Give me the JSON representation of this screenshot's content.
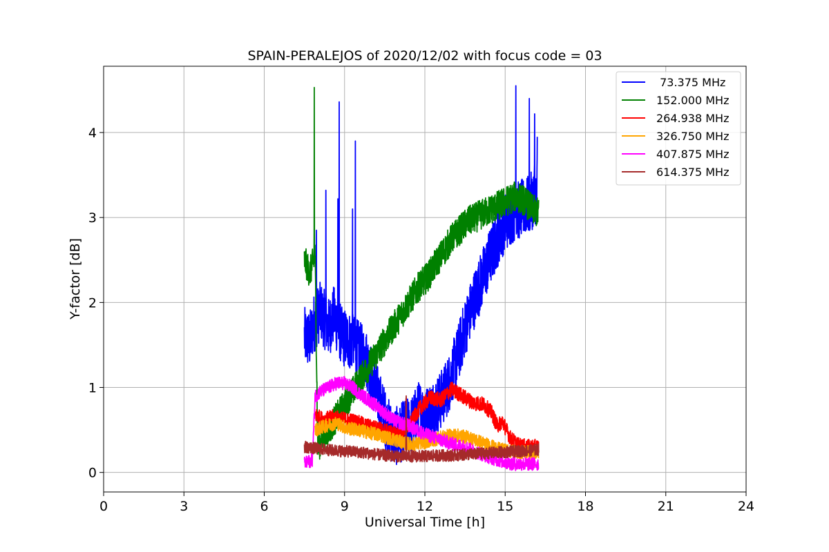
{
  "chart_data": {
    "type": "line",
    "title": "SPAIN-PERALEJOS of 2020/12/02 with focus code = 03",
    "xlabel": "Universal Time [h]",
    "ylabel": "Y-factor [dB]",
    "xlim": [
      0,
      24
    ],
    "ylim": [
      -0.23,
      4.78
    ],
    "xticks": [
      0,
      3,
      6,
      9,
      12,
      15,
      18,
      21,
      24
    ],
    "yticks": [
      0,
      1,
      2,
      3,
      4
    ],
    "grid": true,
    "legend_position": "top-right",
    "series": [
      {
        "name": " 73.375 MHz",
        "color": "#0000ff",
        "x": [
          7.5,
          7.7,
          7.85,
          8.1,
          8.4,
          8.6,
          8.9,
          9.2,
          9.5,
          9.8,
          10.0,
          10.2,
          10.4,
          10.6,
          10.8,
          11.0,
          11.2,
          11.5,
          11.8,
          12.0,
          12.3,
          12.6,
          12.9,
          13.2,
          13.5,
          13.8,
          14.1,
          14.4,
          14.7,
          15.0,
          15.3,
          15.6,
          15.9,
          16.2
        ],
        "y": [
          1.6,
          1.55,
          1.75,
          1.9,
          1.7,
          1.85,
          1.6,
          1.55,
          1.45,
          1.35,
          1.15,
          0.95,
          0.75,
          0.55,
          0.45,
          0.42,
          0.5,
          0.55,
          0.75,
          0.65,
          0.75,
          0.85,
          1.05,
          1.35,
          1.7,
          2.0,
          2.25,
          2.5,
          2.75,
          2.95,
          3.05,
          3.1,
          3.15,
          3.3
        ],
        "spikes": [
          {
            "x": 7.95,
            "y": 2.85
          },
          {
            "x": 8.3,
            "y": 3.32
          },
          {
            "x": 8.75,
            "y": 3.22
          },
          {
            "x": 8.8,
            "y": 4.36
          },
          {
            "x": 9.4,
            "y": 3.9
          },
          {
            "x": 9.3,
            "y": 3.1
          },
          {
            "x": 15.4,
            "y": 4.55
          },
          {
            "x": 15.9,
            "y": 4.4
          },
          {
            "x": 16.1,
            "y": 4.22
          },
          {
            "x": 16.2,
            "y": 3.95
          }
        ]
      },
      {
        "name": "152.000 MHz",
        "color": "#008000",
        "x": [
          7.5,
          7.7,
          7.9,
          8.0,
          8.2,
          8.5,
          8.8,
          9.1,
          9.4,
          9.7,
          10.0,
          10.3,
          10.6,
          10.9,
          11.2,
          11.5,
          11.8,
          12.1,
          12.4,
          12.7,
          13.0,
          13.3,
          13.6,
          13.9,
          14.2,
          14.5,
          14.8,
          15.1,
          15.4,
          15.7,
          16.0,
          16.25
        ],
        "y": [
          2.5,
          2.35,
          2.55,
          0.3,
          0.4,
          0.55,
          0.7,
          0.85,
          1.0,
          1.15,
          1.3,
          1.45,
          1.6,
          1.75,
          1.9,
          2.05,
          2.2,
          2.3,
          2.45,
          2.6,
          2.75,
          2.85,
          2.95,
          3.0,
          3.05,
          3.1,
          3.15,
          3.2,
          3.25,
          3.2,
          3.1,
          3.05
        ],
        "spikes": [
          {
            "x": 7.87,
            "y": 4.53
          }
        ]
      },
      {
        "name": "264.938 MHz",
        "color": "#ff0000",
        "x": [
          7.9,
          8.2,
          8.6,
          9.0,
          9.4,
          9.8,
          10.2,
          10.6,
          11.0,
          11.4,
          11.8,
          12.2,
          12.6,
          13.0,
          13.4,
          13.8,
          14.2,
          14.5,
          14.7,
          14.9,
          15.2,
          15.5,
          15.8,
          16.25
        ],
        "y": [
          0.68,
          0.62,
          0.65,
          0.62,
          0.6,
          0.55,
          0.52,
          0.48,
          0.45,
          0.55,
          0.75,
          0.88,
          0.85,
          0.98,
          0.9,
          0.82,
          0.8,
          0.7,
          0.55,
          0.6,
          0.4,
          0.32,
          0.3,
          0.3
        ],
        "spikes": [
          {
            "x": 11.3,
            "y": 0.88
          }
        ]
      },
      {
        "name": "326.750 MHz",
        "color": "#ffa500",
        "x": [
          7.9,
          8.3,
          8.7,
          9.1,
          9.5,
          9.9,
          10.3,
          10.7,
          11.1,
          11.5,
          11.9,
          12.3,
          12.7,
          13.1,
          13.5,
          13.9,
          14.3,
          14.7,
          15.1,
          15.5,
          15.9,
          16.25
        ],
        "y": [
          0.5,
          0.55,
          0.58,
          0.52,
          0.5,
          0.47,
          0.44,
          0.4,
          0.36,
          0.33,
          0.35,
          0.38,
          0.42,
          0.44,
          0.42,
          0.38,
          0.33,
          0.28,
          0.25,
          0.24,
          0.24,
          0.24
        ],
        "spikes": []
      },
      {
        "name": "407.875 MHz",
        "color": "#ff00ff",
        "x": [
          7.5,
          7.8,
          7.9,
          8.1,
          8.4,
          8.7,
          9.0,
          9.3,
          9.6,
          9.9,
          10.2,
          10.5,
          10.8,
          11.1,
          11.4,
          11.7,
          12.0,
          12.3,
          12.6,
          12.9,
          13.2,
          13.5,
          13.8,
          14.1,
          14.4,
          14.7,
          15.0,
          15.3,
          15.6,
          15.9,
          16.25
        ],
        "y": [
          0.1,
          0.15,
          0.9,
          0.95,
          1.0,
          1.05,
          1.05,
          1.0,
          0.92,
          0.85,
          0.78,
          0.7,
          0.62,
          0.58,
          0.55,
          0.5,
          0.45,
          0.42,
          0.38,
          0.35,
          0.32,
          0.3,
          0.25,
          0.22,
          0.18,
          0.15,
          0.12,
          0.1,
          0.1,
          0.1,
          0.1
        ],
        "spikes": []
      },
      {
        "name": "614.375 MHz",
        "color": "#a52a2a",
        "x": [
          7.5,
          8.0,
          8.5,
          9.0,
          9.5,
          10.0,
          10.5,
          11.0,
          11.5,
          12.0,
          12.5,
          13.0,
          13.5,
          14.0,
          14.5,
          15.0,
          15.5,
          16.0,
          16.25
        ],
        "y": [
          0.3,
          0.28,
          0.26,
          0.25,
          0.24,
          0.22,
          0.2,
          0.19,
          0.19,
          0.19,
          0.2,
          0.2,
          0.21,
          0.22,
          0.23,
          0.24,
          0.25,
          0.26,
          0.27
        ],
        "spikes": [
          {
            "x": 11.3,
            "y": 0.9
          }
        ]
      }
    ]
  }
}
